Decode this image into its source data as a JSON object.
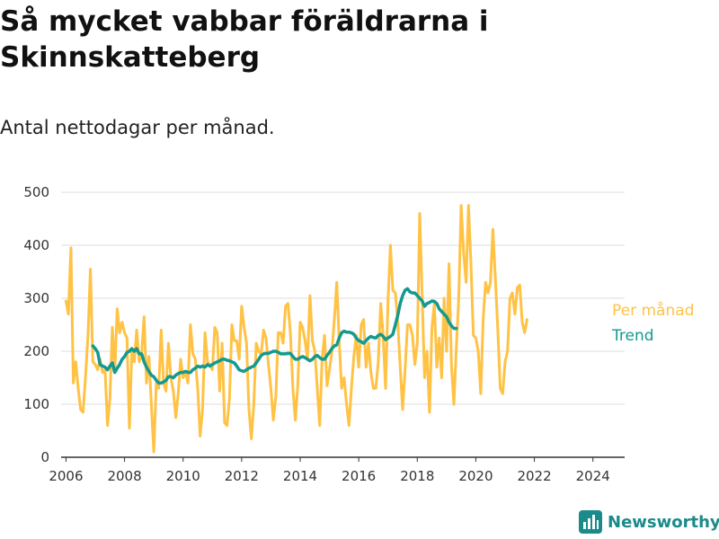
{
  "header": {
    "title": "Så mycket vabbar föräldrarna i Skinnskatteberg",
    "subtitle": "Antal nettodagar per månad."
  },
  "brand": {
    "name": "Newsworthy",
    "icon": "bar-chart-logo-icon"
  },
  "colors": {
    "monthly": "#FFC244",
    "trend": "#13998F",
    "grid": "#DDDDDD",
    "axis": "#333333",
    "brand": "#1B8A8A"
  },
  "chart_data": {
    "type": "line",
    "title": "Så mycket vabbar föräldrarna i Skinnskatteberg",
    "subtitle": "Antal nettodagar per månad.",
    "xlabel": "",
    "ylabel": "",
    "xlim": [
      "2005-11",
      "2025-02"
    ],
    "ylim": [
      0,
      500
    ],
    "x_ticks": [
      "2006",
      "2008",
      "2010",
      "2012",
      "2014",
      "2016",
      "2018",
      "2020",
      "2022",
      "2024"
    ],
    "y_ticks": [
      0,
      100,
      200,
      300,
      400,
      500
    ],
    "grid": true,
    "legend": "right, at line ends",
    "series": [
      {
        "name": "Per månad",
        "start": "2006-01",
        "frequency": "monthly",
        "values": [
          295,
          270,
          395,
          140,
          180,
          130,
          90,
          85,
          150,
          230,
          355,
          180,
          175,
          165,
          185,
          160,
          165,
          60,
          110,
          245,
          160,
          280,
          235,
          255,
          235,
          225,
          55,
          200,
          180,
          240,
          180,
          195,
          265,
          140,
          190,
          100,
          10,
          140,
          130,
          240,
          140,
          125,
          215,
          150,
          125,
          75,
          120,
          185,
          150,
          160,
          140,
          250,
          195,
          185,
          130,
          40,
          90,
          235,
          180,
          175,
          165,
          245,
          235,
          125,
          215,
          65,
          60,
          110,
          250,
          220,
          220,
          185,
          285,
          245,
          215,
          90,
          35,
          100,
          215,
          200,
          195,
          240,
          225,
          175,
          130,
          70,
          115,
          235,
          235,
          215,
          285,
          290,
          235,
          130,
          70,
          135,
          255,
          245,
          220,
          185,
          305,
          220,
          200,
          130,
          60,
          185,
          230,
          135,
          165,
          200,
          260,
          330,
          220,
          130,
          150,
          100,
          60,
          130,
          190,
          230,
          170,
          250,
          260,
          170,
          215,
          160,
          130,
          130,
          180,
          290,
          230,
          130,
          295,
          400,
          315,
          310,
          255,
          170,
          90,
          165,
          250,
          250,
          230,
          175,
          215,
          460,
          305,
          150,
          200,
          85,
          245,
          290,
          170,
          225,
          150,
          300,
          200,
          365,
          175,
          100,
          205,
          300,
          475,
          385,
          330,
          475,
          365,
          230,
          225,
          200,
          120,
          260,
          330,
          310,
          330,
          430,
          340,
          240,
          130,
          120,
          180,
          200,
          300,
          310,
          270,
          320,
          325,
          255,
          235,
          260
        ]
      },
      {
        "name": "Trend",
        "start": "2006-12",
        "frequency": "monthly",
        "values": [
          210,
          205,
          198,
          175,
          172,
          170,
          165,
          172,
          178,
          160,
          168,
          175,
          185,
          190,
          198,
          200,
          205,
          200,
          205,
          195,
          195,
          180,
          170,
          162,
          155,
          152,
          145,
          140,
          140,
          142,
          145,
          152,
          152,
          150,
          155,
          158,
          160,
          160,
          162,
          160,
          160,
          165,
          168,
          172,
          170,
          172,
          170,
          175,
          172,
          175,
          178,
          180,
          182,
          185,
          185,
          183,
          182,
          180,
          178,
          172,
          165,
          163,
          162,
          165,
          168,
          170,
          172,
          178,
          185,
          192,
          195,
          196,
          196,
          198,
          200,
          200,
          198,
          195,
          195,
          195,
          196,
          196,
          190,
          185,
          185,
          188,
          190,
          188,
          185,
          182,
          185,
          190,
          192,
          188,
          185,
          185,
          192,
          198,
          205,
          210,
          212,
          225,
          235,
          238,
          236,
          236,
          235,
          232,
          225,
          220,
          218,
          215,
          220,
          225,
          228,
          226,
          225,
          230,
          232,
          228,
          222,
          225,
          228,
          232,
          250,
          268,
          290,
          305,
          315,
          318,
          312,
          310,
          310,
          305,
          300,
          295,
          285,
          290,
          292,
          295,
          294,
          290,
          280,
          275,
          270,
          265,
          255,
          248,
          243,
          243
        ]
      }
    ]
  }
}
